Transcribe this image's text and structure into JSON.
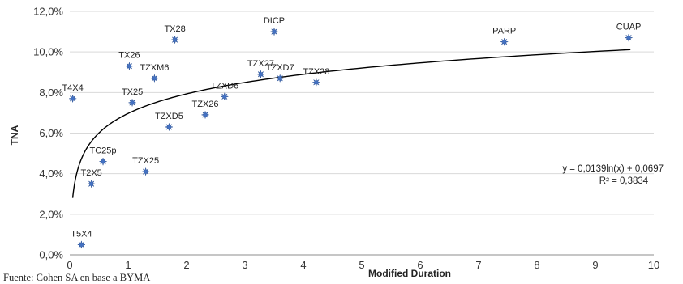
{
  "chart_data": {
    "type": "scatter",
    "ylabel": "TNA",
    "xlabel": "Modified Duration",
    "xlim": [
      0,
      10
    ],
    "ylim": [
      0,
      0.12
    ],
    "x_ticks": [
      "0",
      "1",
      "2",
      "3",
      "4",
      "5",
      "6",
      "7",
      "8",
      "9",
      "10"
    ],
    "y_ticks": [
      "0,0%",
      "2,0%",
      "4,0%",
      "6,0%",
      "8,0%",
      "10,0%",
      "12,0%"
    ],
    "grid": "horizontal",
    "marker_color": "#4472c4",
    "series": [
      {
        "points": [
          {
            "label": "T4X4",
            "x": 0.05,
            "y": 0.077
          },
          {
            "label": "T5X4",
            "x": 0.2,
            "y": 0.005
          },
          {
            "label": "T2X5",
            "x": 0.37,
            "y": 0.035
          },
          {
            "label": "TC25p",
            "x": 0.57,
            "y": 0.046
          },
          {
            "label": "TX26",
            "x": 1.02,
            "y": 0.093
          },
          {
            "label": "TX25",
            "x": 1.07,
            "y": 0.075
          },
          {
            "label": "TZX25",
            "x": 1.3,
            "y": 0.041
          },
          {
            "label": "TZXM6",
            "x": 1.45,
            "y": 0.087
          },
          {
            "label": "TZXD5",
            "x": 1.7,
            "y": 0.063
          },
          {
            "label": "TX28",
            "x": 1.8,
            "y": 0.106
          },
          {
            "label": "TZX26",
            "x": 2.32,
            "y": 0.069
          },
          {
            "label": "TZXD6",
            "x": 2.65,
            "y": 0.078
          },
          {
            "label": "TZX27",
            "x": 3.27,
            "y": 0.089
          },
          {
            "label": "DICP",
            "x": 3.5,
            "y": 0.11
          },
          {
            "label": "TZXD7",
            "x": 3.6,
            "y": 0.087
          },
          {
            "label": "TZX28",
            "x": 4.22,
            "y": 0.085
          },
          {
            "label": "PARP",
            "x": 7.44,
            "y": 0.105
          },
          {
            "label": "CUAP",
            "x": 9.57,
            "y": 0.107
          }
        ]
      }
    ],
    "trendline": {
      "type": "logarithmic",
      "a": 0.0139,
      "b": 0.0697,
      "x_range": [
        0.05,
        9.6
      ],
      "equation": "y = 0,0139ln(x) + 0,0697",
      "r_squared": "R² = 0,3834"
    }
  },
  "source": "Fuente: Cohen SA en base a BYMA"
}
